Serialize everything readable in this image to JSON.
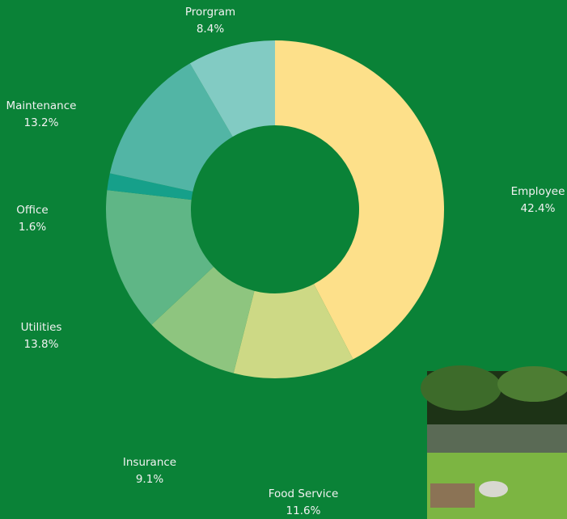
{
  "chart_data": {
    "type": "donut",
    "categories": [
      "Employee",
      "Food Service",
      "Insurance",
      "Utilities",
      "Office",
      "Maintenance",
      "Prorgram"
    ],
    "values": [
      42.4,
      11.6,
      9.1,
      13.8,
      1.6,
      13.2,
      8.4
    ],
    "value_labels": [
      "42.4%",
      "11.6%",
      "9.1%",
      "13.8%",
      "1.6%",
      "13.2%",
      "8.4%"
    ],
    "colors": [
      "#fde08a",
      "#cdd985",
      "#8ec57f",
      "#5fb686",
      "#16a08a",
      "#52b5a5",
      "#82cbc3"
    ]
  }
}
